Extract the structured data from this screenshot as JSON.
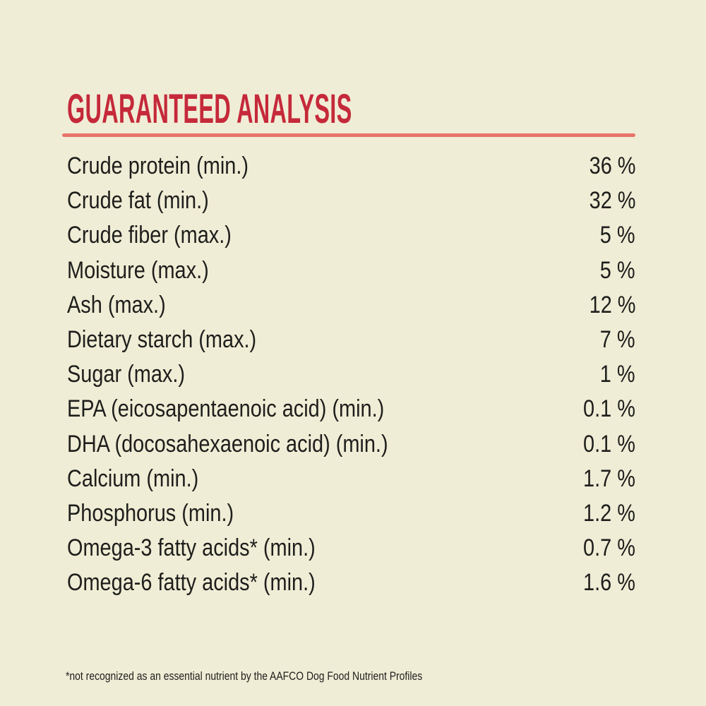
{
  "theme": {
    "background_color": "#f0edd6",
    "text_color": "#1e1e1c",
    "accent_red": "#c5293a",
    "underline_red": "#e8736a"
  },
  "header": {
    "title": "GUARANTEED ANALYSIS"
  },
  "analysis_table": {
    "rows": [
      {
        "label": "Crude protein (min.)",
        "value": "36 %"
      },
      {
        "label": "Crude fat (min.)",
        "value": "32 %"
      },
      {
        "label": "Crude fiber (max.)",
        "value": "5 %"
      },
      {
        "label": "Moisture (max.)",
        "value": "5 %"
      },
      {
        "label": "Ash (max.)",
        "value": "12 %"
      },
      {
        "label": "Dietary starch (max.)",
        "value": "7 %"
      },
      {
        "label": "Sugar (max.)",
        "value": "1 %"
      },
      {
        "label": "EPA (eicosapentaenoic acid) (min.)",
        "value": "0.1 %"
      },
      {
        "label": "DHA (docosahexaenoic acid) (min.)",
        "value": "0.1 %"
      },
      {
        "label": "Calcium (min.)",
        "value": "1.7 %"
      },
      {
        "label": "Phosphorus (min.)",
        "value": "1.2 %"
      },
      {
        "label": "Omega-3 fatty acids* (min.)",
        "value": "0.7 %"
      },
      {
        "label": "Omega-6 fatty acids* (min.)",
        "value": "1.6 %"
      }
    ]
  },
  "footnote": {
    "text": "*not recognized as an essential nutrient by the AAFCO Dog Food Nutrient Profiles"
  }
}
